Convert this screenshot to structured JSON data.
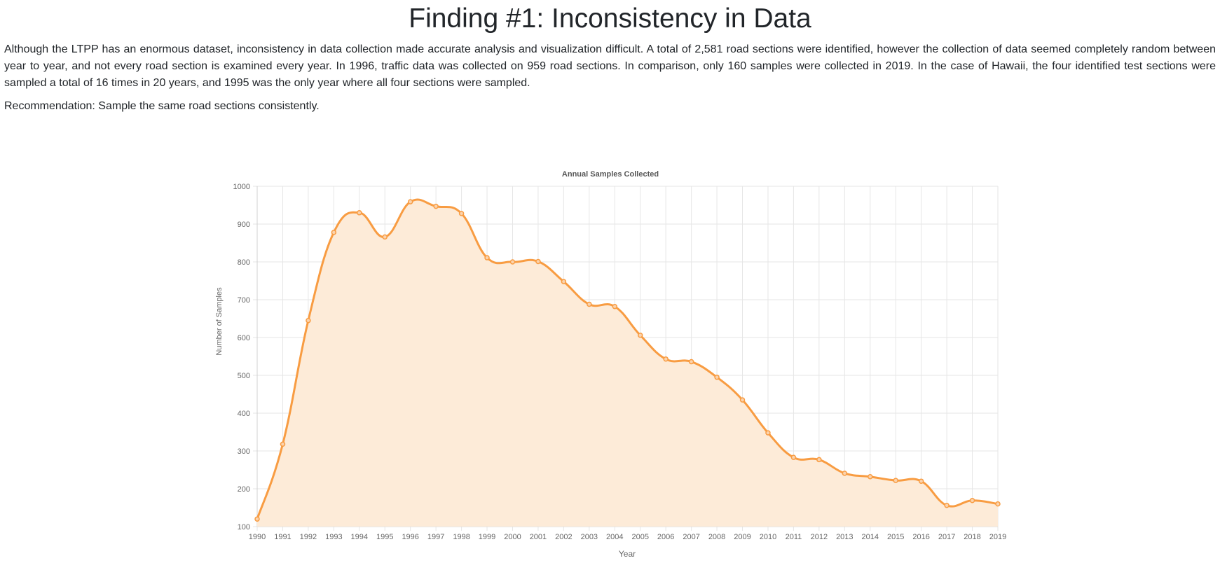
{
  "page": {
    "title": "Finding #1: Inconsistency in Data",
    "paragraph": "Although the LTPP has an enormous dataset, inconsistency in data collection made accurate analysis and visualization difficult. A total of 2,581 road sections were identified, however the collection of data seemed completely random between year to year, and not every road section is examined every year. In 1996, traffic data was collected on 959 road sections. In comparison, only 160 samples were collected in 2019. In the case of Hawaii, the four identified test sections were sampled a total of 16 times in 20 years, and 1995 was the only year where all four sections were sampled.",
    "recommendation": "Recommendation: Sample the same road sections consistently."
  },
  "chart_data": {
    "type": "line",
    "title": "Annual Samples Collected",
    "xlabel": "Year",
    "ylabel": "Number of Samples",
    "ylim": [
      100,
      1000
    ],
    "yticks": [
      100,
      200,
      300,
      400,
      500,
      600,
      700,
      800,
      900,
      1000
    ],
    "categories": [
      "1990",
      "1991",
      "1992",
      "1993",
      "1994",
      "1995",
      "1996",
      "1997",
      "1998",
      "1999",
      "2000",
      "2001",
      "2002",
      "2003",
      "2004",
      "2005",
      "2006",
      "2007",
      "2008",
      "2009",
      "2010",
      "2011",
      "2012",
      "2013",
      "2014",
      "2015",
      "2016",
      "2017",
      "2018",
      "2019"
    ],
    "series": [
      {
        "values": [
          120,
          318,
          645,
          878,
          930,
          866,
          959,
          947,
          928,
          811,
          800,
          801,
          748,
          688,
          682,
          606,
          543,
          536,
          495,
          435,
          348,
          283,
          277,
          241,
          232,
          222,
          220,
          156,
          169,
          160
        ],
        "color": "#f89c42",
        "fill": "#fdebd8"
      }
    ],
    "grid": true,
    "fill": true,
    "smooth": true
  }
}
